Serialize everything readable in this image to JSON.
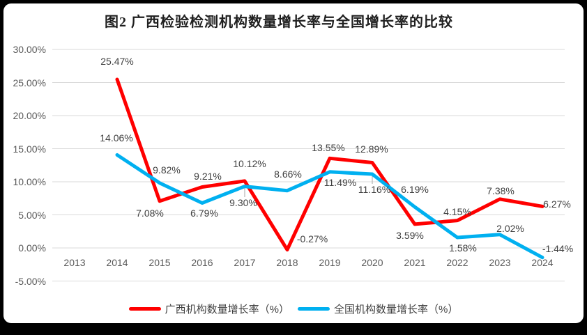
{
  "title": "图2 广西检验检测机构数量增长率与全国增长率的比较",
  "colors": {
    "guangxi_line": "#ff0000",
    "national_line": "#00b0f0",
    "gridline": "#d9d9d9",
    "axis_text": "#595959",
    "data_label_text": "#404040",
    "leader_line": "#a6a6a6",
    "card_background": "#ffffff",
    "frame_border": "#000000"
  },
  "chart_data": {
    "type": "line",
    "title": "图2 广西检验检测机构数量增长率与全国增长率的比较",
    "categories": [
      "2013",
      "2014",
      "2015",
      "2016",
      "2017",
      "2018",
      "2019",
      "2020",
      "2021",
      "2022",
      "2023",
      "2024"
    ],
    "series": [
      {
        "name": "广西机构数量增长率（%）",
        "color_key": "guangxi_line",
        "values": [
          null,
          25.47,
          7.08,
          9.21,
          10.12,
          -0.27,
          13.55,
          12.89,
          3.59,
          4.15,
          7.38,
          6.27
        ],
        "point_labels": [
          "",
          "25.47%",
          "7.08%",
          "9.21%",
          "10.12%",
          "-0.27%",
          "13.55%",
          "12.89%",
          "3.59%",
          "4.15%",
          "7.38%",
          "6.27%"
        ]
      },
      {
        "name": "全国机构数量增长率（%）",
        "color_key": "national_line",
        "values": [
          null,
          14.06,
          9.82,
          6.79,
          9.3,
          8.66,
          11.49,
          11.16,
          6.19,
          1.58,
          2.02,
          -1.44
        ],
        "point_labels": [
          "",
          "14.06%",
          "9.82%",
          "6.79%",
          "9.30%",
          "8.66%",
          "11.49%",
          "11.16%",
          "6.19%",
          "1.58%",
          "2.02%",
          "-1.44%"
        ]
      }
    ],
    "y_axis": {
      "tick_labels": [
        "30.00%",
        "25.00%",
        "20.00%",
        "15.00%",
        "10.00%",
        "5.00%",
        "0.00%",
        "-5.00%"
      ],
      "tick_values": [
        30,
        25,
        20,
        15,
        10,
        5,
        0,
        -5
      ],
      "ylim": [
        -5,
        30
      ]
    },
    "grid": true,
    "legend_position": "bottom"
  }
}
